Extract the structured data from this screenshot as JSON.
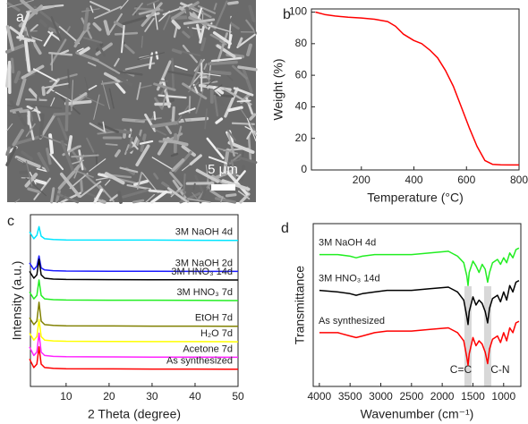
{
  "chart_data": [
    {
      "type": "image",
      "label": "a",
      "scale_bar": "5 μm"
    },
    {
      "type": "line",
      "label": "b",
      "x_label": "Temperature (°C)",
      "y_label": "Weight (%)",
      "xlim": [
        10,
        800
      ],
      "ylim": [
        0,
        102
      ],
      "xticks": [
        200,
        400,
        600,
        800
      ],
      "yticks": [
        0,
        20,
        40,
        60,
        80,
        100
      ],
      "color": "#ff0000",
      "x": [
        25,
        60,
        100,
        150,
        200,
        250,
        300,
        330,
        360,
        400,
        430,
        460,
        490,
        520,
        550,
        580,
        610,
        640,
        670,
        700,
        730,
        760,
        800
      ],
      "values": [
        100,
        98.5,
        97.5,
        96.8,
        96.3,
        95.5,
        94,
        91,
        86,
        82,
        80,
        76,
        71,
        63,
        53,
        40,
        27,
        15,
        6,
        3.5,
        3.3,
        3.2,
        3.2
      ]
    },
    {
      "type": "line",
      "label": "c",
      "x_label": "2 Theta (degree)",
      "y_label": "Intensity (a.u.)",
      "label_side": "right",
      "xlim": [
        1.7,
        50
      ],
      "ylim": [
        0,
        100
      ],
      "xticks": [
        10,
        20,
        30,
        40,
        50
      ],
      "x": [
        1.5,
        2.5,
        3.2,
        3.7,
        4.2,
        5,
        7,
        10,
        20,
        30,
        40,
        50
      ],
      "series": [
        {
          "name": "3M NaOH 4d",
          "color": "#00e5ff",
          "values": [
            90,
            86,
            88,
            93,
            87.5,
            86,
            85.5,
            85.3,
            85.2,
            85.2,
            85.1,
            85
          ]
        },
        {
          "name": "3M NaOH 2d",
          "color": "#1a1aff",
          "values": [
            72,
            68,
            70,
            76,
            69,
            67.8,
            67.4,
            67.2,
            67.1,
            67.1,
            67,
            67
          ]
        },
        {
          "name": "3M HNO₃ 14d",
          "color": "#000000",
          "values": [
            67,
            63,
            65,
            74,
            65,
            63,
            62.5,
            62.3,
            62.2,
            62.1,
            62.1,
            62
          ]
        },
        {
          "name": "3M HNO₃ 7d",
          "color": "#22ee22",
          "values": [
            55,
            51,
            53,
            62,
            53,
            51,
            50.5,
            50.3,
            50.2,
            50.2,
            50.1,
            50
          ]
        },
        {
          "name": "EtOH 7d",
          "color": "#808000",
          "values": [
            40,
            36,
            38,
            49,
            38,
            36,
            35.5,
            35.3,
            35.2,
            35.1,
            35.1,
            35
          ]
        },
        {
          "name": "H₂O 7d",
          "color": "#ffff00",
          "values": [
            31,
            27,
            29,
            39,
            29,
            27,
            26.5,
            26.3,
            26.2,
            26.1,
            26.1,
            26
          ]
        },
        {
          "name": "Acetone 7d",
          "color": "#ff22ff",
          "values": [
            23,
            18,
            20,
            31,
            20,
            18,
            17.5,
            17.3,
            17.2,
            17.1,
            17.1,
            17
          ]
        },
        {
          "name": "As synthesized",
          "color": "#ff0000",
          "values": [
            16,
            11,
            13,
            23,
            13,
            11,
            10.5,
            10.3,
            10.2,
            10.1,
            10.1,
            10
          ]
        }
      ]
    },
    {
      "type": "line",
      "label": "d",
      "x_label": "Wavenumber (cm⁻¹)",
      "y_label": "Transmittance",
      "label_side": "left",
      "xlim": [
        4100,
        720
      ],
      "ylim": [
        0,
        10
      ],
      "xticks": [
        4000,
        3500,
        3000,
        2500,
        2000,
        1500,
        1000
      ],
      "x": [
        4000,
        3700,
        3500,
        3400,
        3300,
        3100,
        2900,
        2700,
        2500,
        2200,
        1900,
        1750,
        1650,
        1600,
        1580,
        1560,
        1500,
        1450,
        1400,
        1350,
        1300,
        1260,
        1230,
        1180,
        1100,
        1050,
        1000,
        950,
        900,
        850,
        800,
        750
      ],
      "series": [
        {
          "name": "3M NaOH 4d",
          "color": "#22ee22",
          "values": [
            8.1,
            8.1,
            8.0,
            7.9,
            8.0,
            8.1,
            8.1,
            8.1,
            8.1,
            8.2,
            8.3,
            8.0,
            7.6,
            6.8,
            6.2,
            7.0,
            7.7,
            7.4,
            7.0,
            7.5,
            7.2,
            6.4,
            7.0,
            7.6,
            7.8,
            7.5,
            7.9,
            7.6,
            8.2,
            7.9,
            8.4,
            8.5
          ]
        },
        {
          "name": "3M HNO₃ 14d",
          "color": "#000000",
          "values": [
            5.9,
            5.8,
            5.7,
            5.6,
            5.7,
            5.8,
            5.9,
            5.9,
            5.9,
            6.0,
            6.1,
            5.8,
            5.3,
            4.3,
            3.8,
            4.6,
            5.5,
            5.0,
            5.3,
            5.1,
            4.6,
            3.9,
            4.8,
            5.4,
            5.6,
            5.2,
            5.8,
            5.3,
            6.2,
            5.8,
            6.4,
            6.5
          ]
        },
        {
          "name": "As synthesized",
          "color": "#ff0000",
          "values": [
            3.3,
            3.3,
            3.1,
            3.0,
            3.1,
            3.3,
            3.4,
            3.4,
            3.4,
            3.5,
            3.6,
            3.3,
            2.8,
            1.8,
            1.3,
            2.0,
            3.0,
            2.5,
            2.8,
            2.6,
            2.1,
            1.4,
            2.3,
            2.9,
            3.1,
            2.7,
            3.3,
            2.8,
            3.6,
            3.3,
            3.9,
            4.0
          ]
        }
      ],
      "annotations": [
        {
          "text": "C=C",
          "x": 1580
        },
        {
          "text": "C-N",
          "x": 1260
        }
      ]
    }
  ]
}
